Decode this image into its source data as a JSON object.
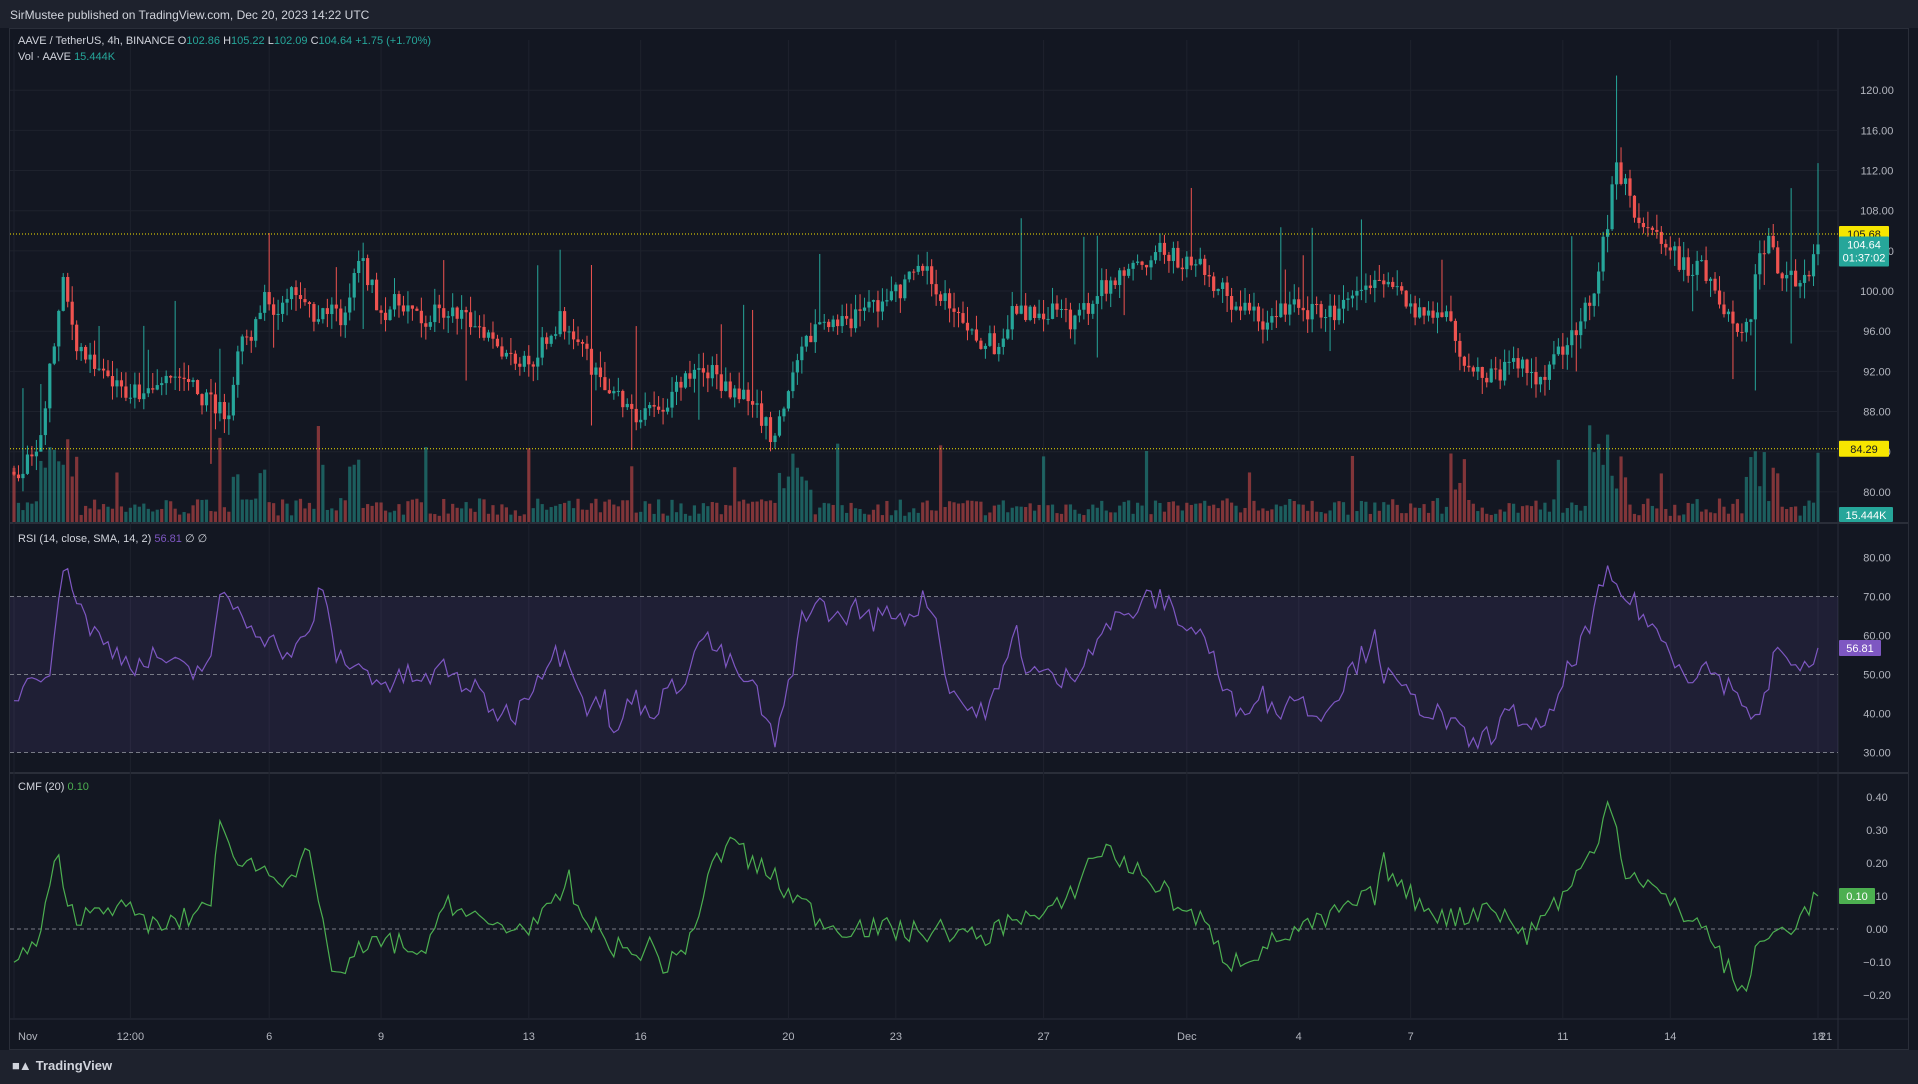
{
  "header": {
    "published": "SirMustee published on TradingView.com, Dec 20, 2023 14:22 UTC"
  },
  "legend": {
    "symbol": "AAVE / TetherUS, 4h, BINANCE",
    "o_label": "O",
    "o": "102.86",
    "h_label": "H",
    "h": "105.22",
    "l_label": "L",
    "l": "102.09",
    "c_label": "C",
    "c": "104.64",
    "change": "+1.75 (+1.70%)",
    "vol_label": "Vol · AAVE",
    "vol": "15.444K",
    "rsi_label": "RSI (14, close, SMA, 14, 2)",
    "rsi": "56.81",
    "rsi_extra": "∅ ∅",
    "cmf_label": "CMF (20)",
    "cmf": "0.10"
  },
  "footer": {
    "logo_text": "TradingView"
  },
  "colors": {
    "up": "#26a69a",
    "down": "#ef5350",
    "rsi": "#7e57c2",
    "cmf": "#4caf50",
    "marker": "#f7e600"
  },
  "chart_data": [
    {
      "type": "candlestick",
      "title": "AAVE / TetherUS, 4h, BINANCE",
      "y_ticks": [
        "120.00",
        "116.00",
        "112.00",
        "108.00",
        "104.00",
        "100.00",
        "96.00",
        "92.00",
        "88.00",
        "84.00",
        "80.00"
      ],
      "ylim": [
        77.0,
        125.0
      ],
      "x_ticks": [
        "Nov",
        "12:00",
        "6",
        "9",
        "13",
        "16",
        "20",
        "23",
        "27",
        "Dec",
        "4",
        "7",
        "11",
        "14",
        "18",
        "21"
      ],
      "price_labels": [
        {
          "value": "105.68",
          "style": "yellow"
        },
        {
          "value": "104.64",
          "sub": "01:37:02",
          "style": "green"
        },
        {
          "value": "84.29",
          "style": "yellow"
        }
      ],
      "horizontal_lines": [
        105.68,
        84.29
      ],
      "close_anchors": [
        [
          0,
          82.0
        ],
        [
          5,
          84.0
        ],
        [
          8,
          92.0
        ],
        [
          11,
          100.5
        ],
        [
          14,
          95.0
        ],
        [
          18,
          92.0
        ],
        [
          24,
          90.0
        ],
        [
          30,
          90.5
        ],
        [
          36,
          91.5
        ],
        [
          42,
          89.5
        ],
        [
          48,
          87.5
        ],
        [
          50,
          94.0
        ],
        [
          54,
          96.5
        ],
        [
          56,
          99.0
        ],
        [
          60,
          98.0
        ],
        [
          63,
          100.0
        ],
        [
          65,
          98.0
        ],
        [
          70,
          98.0
        ],
        [
          74,
          97.0
        ],
        [
          77,
          103.5
        ],
        [
          82,
          98.0
        ],
        [
          87,
          99.0
        ],
        [
          91,
          96.5
        ],
        [
          95,
          98.0
        ],
        [
          98,
          97.5
        ],
        [
          103,
          97.0
        ],
        [
          106,
          96.0
        ],
        [
          110,
          94.0
        ],
        [
          115,
          92.5
        ],
        [
          118,
          95.0
        ],
        [
          122,
          97.0
        ],
        [
          126,
          96.0
        ],
        [
          130,
          91.5
        ],
        [
          134,
          90.0
        ],
        [
          138,
          87.5
        ],
        [
          142,
          88.0
        ],
        [
          146,
          89.0
        ],
        [
          150,
          91.0
        ],
        [
          154,
          92.5
        ],
        [
          158,
          91.0
        ],
        [
          162,
          90.0
        ],
        [
          166,
          88.5
        ],
        [
          170,
          85.0
        ],
        [
          174,
          91.0
        ],
        [
          178,
          96.0
        ],
        [
          182,
          97.5
        ],
        [
          186,
          96.5
        ],
        [
          190,
          98.5
        ],
        [
          194,
          99.0
        ],
        [
          198,
          100.0
        ],
        [
          202,
          102.5
        ],
        [
          205,
          101.0
        ],
        [
          208,
          99.5
        ],
        [
          212,
          96.0
        ],
        [
          216,
          95.0
        ],
        [
          220,
          94.5
        ],
        [
          224,
          98.5
        ],
        [
          228,
          97.5
        ],
        [
          232,
          98.0
        ],
        [
          236,
          97.0
        ],
        [
          240,
          98.5
        ],
        [
          244,
          100.5
        ],
        [
          248,
          102.0
        ],
        [
          252,
          103.0
        ],
        [
          256,
          104.0
        ],
        [
          260,
          103.0
        ],
        [
          264,
          102.5
        ],
        [
          268,
          101.0
        ],
        [
          272,
          99.0
        ],
        [
          276,
          98.0
        ],
        [
          280,
          96.5
        ],
        [
          284,
          98.5
        ],
        [
          288,
          98.0
        ],
        [
          292,
          97.5
        ],
        [
          296,
          98.0
        ],
        [
          300,
          99.0
        ],
        [
          304,
          100.5
        ],
        [
          308,
          101.5
        ],
        [
          312,
          98.5
        ],
        [
          316,
          97.5
        ],
        [
          320,
          98.5
        ],
        [
          324,
          93.0
        ],
        [
          328,
          91.5
        ],
        [
          332,
          92.0
        ],
        [
          336,
          93.0
        ],
        [
          340,
          91.0
        ],
        [
          344,
          93.5
        ],
        [
          348,
          96.0
        ],
        [
          352,
          98.5
        ],
        [
          354,
          103.0
        ],
        [
          356,
          107.0
        ],
        [
          358,
          113.0
        ],
        [
          360,
          110.5
        ],
        [
          363,
          107.0
        ],
        [
          366,
          106.0
        ],
        [
          370,
          104.0
        ],
        [
          374,
          102.0
        ],
        [
          377,
          102.5
        ],
        [
          380,
          99.5
        ],
        [
          384,
          97.0
        ],
        [
          386,
          95.5
        ],
        [
          388,
          98.0
        ],
        [
          390,
          104.0
        ],
        [
          392,
          105.5
        ],
        [
          394,
          102.5
        ],
        [
          396,
          101.5
        ],
        [
          398,
          100.8
        ],
        [
          400,
          102.0
        ],
        [
          402,
          103.0
        ],
        [
          403,
          104.64
        ]
      ],
      "volume": {
        "series": "Vol · AAVE",
        "last": "15.444K"
      }
    },
    {
      "type": "line",
      "title": "RSI (14, close, SMA, 14, 2)",
      "y_ticks": [
        "80.00",
        "70.00",
        "60.00",
        "50.00",
        "40.00",
        "30.00"
      ],
      "ylim": [
        25,
        85
      ],
      "levels": [
        70,
        50,
        30
      ],
      "last_value": "56.81",
      "anchors": [
        [
          0,
          44
        ],
        [
          4,
          50
        ],
        [
          8,
          52
        ],
        [
          10,
          70
        ],
        [
          12,
          78
        ],
        [
          14,
          70
        ],
        [
          17,
          62
        ],
        [
          20,
          58
        ],
        [
          24,
          55
        ],
        [
          28,
          52
        ],
        [
          32,
          55
        ],
        [
          36,
          52
        ],
        [
          40,
          50
        ],
        [
          44,
          55
        ],
        [
          46,
          68
        ],
        [
          48,
          70
        ],
        [
          50,
          66
        ],
        [
          54,
          62
        ],
        [
          58,
          58
        ],
        [
          62,
          55
        ],
        [
          66,
          60
        ],
        [
          68,
          72
        ],
        [
          70,
          66
        ],
        [
          72,
          55
        ],
        [
          76,
          52
        ],
        [
          80,
          50
        ],
        [
          84,
          47
        ],
        [
          88,
          50
        ],
        [
          92,
          48
        ],
        [
          96,
          52
        ],
        [
          100,
          48
        ],
        [
          104,
          45
        ],
        [
          108,
          40
        ],
        [
          112,
          40
        ],
        [
          116,
          48
        ],
        [
          120,
          55
        ],
        [
          124,
          55
        ],
        [
          128,
          42
        ],
        [
          132,
          44
        ],
        [
          134,
          33
        ],
        [
          138,
          45
        ],
        [
          142,
          40
        ],
        [
          146,
          45
        ],
        [
          150,
          50
        ],
        [
          154,
          60
        ],
        [
          158,
          55
        ],
        [
          162,
          50
        ],
        [
          166,
          45
        ],
        [
          168,
          38
        ],
        [
          170,
          32
        ],
        [
          172,
          42
        ],
        [
          174,
          50
        ],
        [
          176,
          66
        ],
        [
          180,
          68
        ],
        [
          184,
          64
        ],
        [
          188,
          67
        ],
        [
          192,
          64
        ],
        [
          196,
          66
        ],
        [
          200,
          65
        ],
        [
          204,
          70
        ],
        [
          206,
          64
        ],
        [
          208,
          50
        ],
        [
          212,
          42
        ],
        [
          216,
          40
        ],
        [
          220,
          46
        ],
        [
          224,
          62
        ],
        [
          226,
          52
        ],
        [
          230,
          50
        ],
        [
          234,
          48
        ],
        [
          238,
          52
        ],
        [
          242,
          60
        ],
        [
          246,
          64
        ],
        [
          250,
          66
        ],
        [
          254,
          70
        ],
        [
          258,
          68
        ],
        [
          262,
          62
        ],
        [
          266,
          60
        ],
        [
          268,
          54
        ],
        [
          270,
          46
        ],
        [
          274,
          40
        ],
        [
          278,
          46
        ],
        [
          282,
          40
        ],
        [
          286,
          45
        ],
        [
          290,
          40
        ],
        [
          294,
          42
        ],
        [
          298,
          50
        ],
        [
          302,
          56
        ],
        [
          304,
          62
        ],
        [
          306,
          50
        ],
        [
          310,
          46
        ],
        [
          314,
          42
        ],
        [
          318,
          40
        ],
        [
          322,
          36
        ],
        [
          326,
          32
        ],
        [
          330,
          35
        ],
        [
          334,
          40
        ],
        [
          338,
          38
        ],
        [
          342,
          35
        ],
        [
          346,
          48
        ],
        [
          350,
          58
        ],
        [
          352,
          62
        ],
        [
          354,
          70
        ],
        [
          356,
          75
        ],
        [
          358,
          72
        ],
        [
          360,
          70
        ],
        [
          362,
          68
        ],
        [
          366,
          62
        ],
        [
          370,
          56
        ],
        [
          374,
          50
        ],
        [
          378,
          52
        ],
        [
          382,
          48
        ],
        [
          386,
          44
        ],
        [
          388,
          40
        ],
        [
          390,
          38
        ],
        [
          392,
          48
        ],
        [
          394,
          58
        ],
        [
          396,
          54
        ],
        [
          398,
          50
        ],
        [
          400,
          52
        ],
        [
          403,
          56.81
        ]
      ]
    },
    {
      "type": "line",
      "title": "CMF (20)",
      "y_ticks": [
        "0.40",
        "0.30",
        "0.20",
        "0.10",
        "0.00",
        "−0.10",
        "−0.20"
      ],
      "ylim": [
        -0.27,
        0.47
      ],
      "levels": [
        0.0
      ],
      "last_value": "0.10",
      "anchors": [
        [
          0,
          -0.1
        ],
        [
          4,
          -0.06
        ],
        [
          6,
          -0.02
        ],
        [
          8,
          0.15
        ],
        [
          10,
          0.2
        ],
        [
          12,
          0.05
        ],
        [
          16,
          0.04
        ],
        [
          20,
          0.08
        ],
        [
          24,
          0.06
        ],
        [
          28,
          0.04
        ],
        [
          32,
          0.0
        ],
        [
          36,
          0.02
        ],
        [
          40,
          0.04
        ],
        [
          44,
          0.1
        ],
        [
          46,
          0.3
        ],
        [
          48,
          0.25
        ],
        [
          52,
          0.2
        ],
        [
          56,
          0.18
        ],
        [
          60,
          0.16
        ],
        [
          64,
          0.18
        ],
        [
          66,
          0.24
        ],
        [
          68,
          0.05
        ],
        [
          70,
          -0.05
        ],
        [
          72,
          -0.15
        ],
        [
          76,
          -0.08
        ],
        [
          80,
          -0.05
        ],
        [
          84,
          -0.04
        ],
        [
          88,
          -0.05
        ],
        [
          92,
          -0.1
        ],
        [
          96,
          0.1
        ],
        [
          100,
          0.05
        ],
        [
          104,
          0.02
        ],
        [
          108,
          0.01
        ],
        [
          112,
          0.0
        ],
        [
          116,
          0.02
        ],
        [
          120,
          0.05
        ],
        [
          124,
          0.15
        ],
        [
          126,
          0.05
        ],
        [
          130,
          0.0
        ],
        [
          134,
          -0.05
        ],
        [
          138,
          -0.08
        ],
        [
          142,
          -0.05
        ],
        [
          146,
          -0.12
        ],
        [
          150,
          -0.05
        ],
        [
          154,
          0.08
        ],
        [
          156,
          0.2
        ],
        [
          160,
          0.25
        ],
        [
          162,
          0.28
        ],
        [
          164,
          0.2
        ],
        [
          168,
          0.18
        ],
        [
          172,
          0.12
        ],
        [
          176,
          0.08
        ],
        [
          180,
          0.03
        ],
        [
          184,
          0.0
        ],
        [
          188,
          0.01
        ],
        [
          192,
          0.0
        ],
        [
          196,
          0.0
        ],
        [
          200,
          -0.01
        ],
        [
          204,
          -0.01
        ],
        [
          208,
          0.0
        ],
        [
          212,
          -0.02
        ],
        [
          216,
          -0.03
        ],
        [
          220,
          0.0
        ],
        [
          224,
          0.05
        ],
        [
          228,
          0.03
        ],
        [
          232,
          0.05
        ],
        [
          236,
          0.1
        ],
        [
          240,
          0.2
        ],
        [
          244,
          0.25
        ],
        [
          246,
          0.22
        ],
        [
          250,
          0.18
        ],
        [
          254,
          0.15
        ],
        [
          258,
          0.1
        ],
        [
          262,
          0.05
        ],
        [
          266,
          0.02
        ],
        [
          268,
          -0.05
        ],
        [
          272,
          -0.1
        ],
        [
          276,
          -0.08
        ],
        [
          280,
          -0.05
        ],
        [
          284,
          -0.02
        ],
        [
          288,
          0.0
        ],
        [
          292,
          0.02
        ],
        [
          296,
          0.05
        ],
        [
          300,
          0.08
        ],
        [
          304,
          0.1
        ],
        [
          306,
          0.2
        ],
        [
          310,
          0.12
        ],
        [
          314,
          0.08
        ],
        [
          318,
          0.05
        ],
        [
          322,
          0.03
        ],
        [
          326,
          0.05
        ],
        [
          330,
          0.08
        ],
        [
          334,
          0.02
        ],
        [
          338,
          -0.02
        ],
        [
          342,
          0.05
        ],
        [
          346,
          0.1
        ],
        [
          350,
          0.18
        ],
        [
          354,
          0.25
        ],
        [
          356,
          0.42
        ],
        [
          358,
          0.3
        ],
        [
          360,
          0.18
        ],
        [
          364,
          0.15
        ],
        [
          368,
          0.1
        ],
        [
          372,
          0.05
        ],
        [
          376,
          0.03
        ],
        [
          380,
          -0.05
        ],
        [
          384,
          -0.15
        ],
        [
          386,
          -0.2
        ],
        [
          388,
          -0.12
        ],
        [
          390,
          -0.05
        ],
        [
          392,
          -0.02
        ],
        [
          396,
          0.0
        ],
        [
          400,
          0.05
        ],
        [
          403,
          0.1
        ]
      ]
    }
  ]
}
